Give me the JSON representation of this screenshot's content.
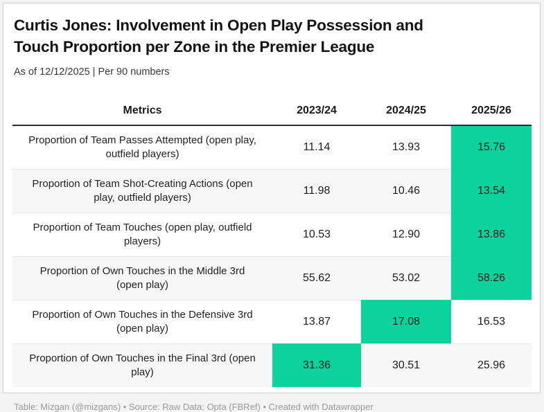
{
  "card": {
    "title_lines": [
      "Curtis Jones: Involvement in Open Play Possession and",
      "Touch Proportion per Zone in the Premier League"
    ],
    "subtitle": "As of 12/12/2025 | Per 90 numbers",
    "footer": "Table: Mizgan (@mizgans) • Source: Raw Data: Opta (FBRef) • Created with Datawrapper"
  },
  "colors": {
    "highlight_green": "#0cd29c",
    "zebra_row": "#f7f7f7",
    "header_rule": "#2b2b2b",
    "row_divider": "#e7e7e7",
    "footer_text": "#9a9a9a",
    "card_border": "#cfcfcf",
    "page_background": "#f3f3f3"
  },
  "chart_data": {
    "type": "table",
    "title": "Curtis Jones: Involvement in Open Play Possession and Touch Proportion per Zone in the Premier League",
    "subtitle": "As of 12/12/2025 | Per 90 numbers",
    "columns": [
      "Metrics",
      "2023/24",
      "2024/25",
      "2025/26"
    ],
    "rows": [
      {
        "metric": "Proportion of Team Passes Attempted (open play, outfield players)",
        "values": [
          "11.14",
          "13.93",
          "15.76"
        ],
        "highlight_col": "2025/26"
      },
      {
        "metric": "Proportion of Team Shot-Creating Actions (open play, outfield players)",
        "values": [
          "11.98",
          "10.46",
          "13.54"
        ],
        "highlight_col": "2025/26"
      },
      {
        "metric": "Proportion of Team Touches (open play, outfield players)",
        "values": [
          "10.53",
          "12.90",
          "13.86"
        ],
        "highlight_col": "2025/26"
      },
      {
        "metric": "Proportion of Own Touches in the Middle 3rd (open play)",
        "values": [
          "55.62",
          "53.02",
          "58.26"
        ],
        "highlight_col": "2025/26"
      },
      {
        "metric": "Proportion of Own Touches in the Defensive 3rd (open play)",
        "values": [
          "13.87",
          "17.08",
          "16.53"
        ],
        "highlight_col": "2024/25"
      },
      {
        "metric": "Proportion of Own Touches in the Final 3rd (open play)",
        "values": [
          "31.36",
          "30.51",
          "25.96"
        ],
        "highlight_col": "2023/24"
      }
    ],
    "highlight_meaning": "highest/highlighted season value per row shown on green cell",
    "legend_position": "none",
    "grid": "horizontal row dividers only"
  }
}
